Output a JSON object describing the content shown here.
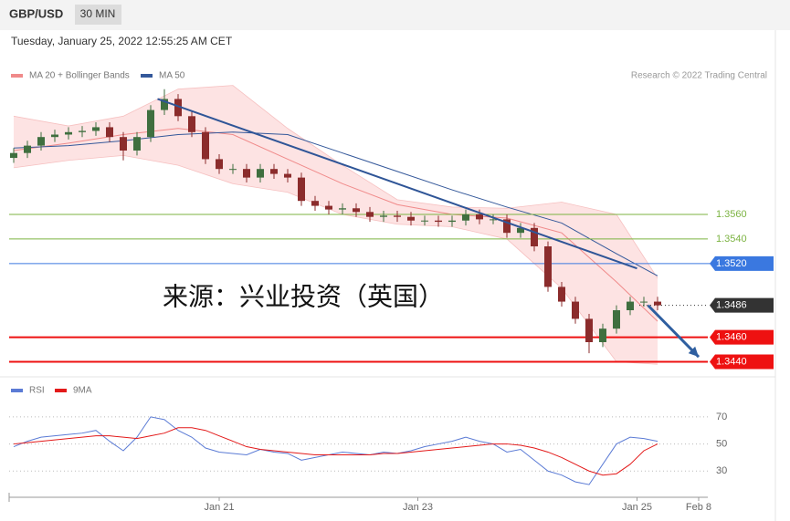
{
  "chart_data": {
    "type": "candlestick",
    "title": "GBP/USD",
    "timeframe": "30 MIN",
    "subtitle": "Tuesday, January 25, 2022 12:55:25 AM CET",
    "credit": "Research © 2022 Trading Central",
    "watermark": "来源：兴业投资（英国）",
    "xlim": [
      -1,
      51
    ],
    "xticks": [
      {
        "value": 15,
        "label": "Jan 21"
      },
      {
        "value": 29.5,
        "label": "Jan 23"
      },
      {
        "value": 45.5,
        "label": "Jan 25"
      },
      {
        "value": 50,
        "label": "Feb 8"
      }
    ],
    "ylim": [
      1.343,
      1.369
    ],
    "candles": {
      "up_color": "#3f6f3f",
      "down_color": "#8b2c2c",
      "open": [
        1.3606,
        1.361,
        1.3616,
        1.3623,
        1.3625,
        1.3627,
        1.3628,
        1.3631,
        1.3623,
        1.3612,
        1.3623,
        1.3645,
        1.3654,
        1.364,
        1.3627,
        1.3605,
        1.3597,
        1.3597,
        1.359,
        1.3597,
        1.3593,
        1.359,
        1.3571,
        1.3567,
        1.3564,
        1.3565,
        1.3562,
        1.3558,
        1.3559,
        1.3558,
        1.3555,
        1.3555,
        1.3554,
        1.3555,
        1.356,
        1.3556,
        1.3556,
        1.3545,
        1.3549,
        1.3534,
        1.3501,
        1.3489,
        1.3475,
        1.3456,
        1.3467,
        1.3482,
        1.3489,
        1.3489
      ],
      "high": [
        1.3614,
        1.362,
        1.3627,
        1.3629,
        1.3631,
        1.3632,
        1.3635,
        1.3635,
        1.3627,
        1.3627,
        1.3649,
        1.3662,
        1.3658,
        1.3644,
        1.3631,
        1.3609,
        1.3601,
        1.3601,
        1.3601,
        1.3601,
        1.3597,
        1.3594,
        1.3575,
        1.3571,
        1.3569,
        1.3569,
        1.3566,
        1.3563,
        1.3563,
        1.3562,
        1.3559,
        1.3559,
        1.3559,
        1.3564,
        1.3564,
        1.356,
        1.356,
        1.3553,
        1.3553,
        1.3538,
        1.3505,
        1.3493,
        1.3479,
        1.3471,
        1.3486,
        1.3493,
        1.3493,
        1.3493
      ],
      "low": [
        1.3602,
        1.3606,
        1.3612,
        1.3619,
        1.3621,
        1.3623,
        1.3624,
        1.3619,
        1.3604,
        1.3608,
        1.3619,
        1.3641,
        1.3636,
        1.3623,
        1.3601,
        1.3593,
        1.3593,
        1.3586,
        1.3586,
        1.3589,
        1.3586,
        1.3567,
        1.3563,
        1.356,
        1.356,
        1.3558,
        1.3554,
        1.3554,
        1.3554,
        1.3551,
        1.3551,
        1.355,
        1.355,
        1.3551,
        1.3552,
        1.3552,
        1.3541,
        1.3541,
        1.353,
        1.3497,
        1.3485,
        1.3471,
        1.3447,
        1.3452,
        1.3463,
        1.3478,
        1.3485,
        1.3482
      ],
      "close": [
        1.361,
        1.3616,
        1.3623,
        1.3625,
        1.3627,
        1.3628,
        1.3631,
        1.3623,
        1.3612,
        1.3623,
        1.3645,
        1.3654,
        1.364,
        1.3627,
        1.3605,
        1.3597,
        1.3597,
        1.359,
        1.3597,
        1.3593,
        1.359,
        1.3571,
        1.3567,
        1.3564,
        1.3565,
        1.3562,
        1.3558,
        1.3559,
        1.3558,
        1.3555,
        1.3555,
        1.3554,
        1.3555,
        1.356,
        1.3556,
        1.3556,
        1.3545,
        1.3549,
        1.3534,
        1.3501,
        1.3489,
        1.3475,
        1.3456,
        1.3467,
        1.3482,
        1.3489,
        1.3489,
        1.3486
      ]
    },
    "overlays": {
      "x": [
        0,
        4,
        8,
        12,
        16,
        20,
        24,
        28,
        32,
        36,
        40,
        44,
        47
      ],
      "bands": {
        "name": "MA 20 + Bollinger Bands",
        "color": "#f08a8a",
        "fill": "#fde3e3",
        "ma": [
          1.3612,
          1.3618,
          1.3625,
          1.363,
          1.3625,
          1.3605,
          1.3585,
          1.3568,
          1.356,
          1.3557,
          1.3545,
          1.3505,
          1.3473
        ],
        "upper": [
          1.364,
          1.3632,
          1.364,
          1.3662,
          1.3665,
          1.363,
          1.36,
          1.3572,
          1.3566,
          1.3565,
          1.357,
          1.356,
          1.3508
        ],
        "lower": [
          1.3598,
          1.3604,
          1.3608,
          1.36,
          1.3585,
          1.3578,
          1.356,
          1.3552,
          1.355,
          1.354,
          1.35,
          1.344,
          1.3438
        ]
      },
      "ma50": {
        "name": "MA 50",
        "color": "#34589a",
        "values": [
          1.3614,
          1.3616,
          1.362,
          1.3625,
          1.3627,
          1.3625,
          1.361,
          1.3595,
          1.358,
          1.3566,
          1.3553,
          1.3528,
          1.351
        ]
      }
    },
    "trendline": {
      "x": [
        10.5,
        45.5
      ],
      "values": [
        1.3654,
        1.3516
      ],
      "color": "#2f5597"
    },
    "arrow": {
      "x": [
        46.3,
        50
      ],
      "values": [
        1.3486,
        1.3444
      ],
      "color": "#2f5fa0"
    },
    "levels": [
      {
        "value": 1.356,
        "label": "1.3560",
        "color": "#7cb342",
        "box": false
      },
      {
        "value": 1.354,
        "label": "1.3540",
        "color": "#7cb342",
        "box": false
      },
      {
        "value": 1.352,
        "label": "1.3520",
        "color": "#3a78e0",
        "box": true
      },
      {
        "value": 1.3486,
        "label": "1.3486",
        "color": "#333333",
        "box": true
      },
      {
        "value": 1.346,
        "label": "1.3460",
        "color": "#ee1111",
        "box": true
      },
      {
        "value": 1.344,
        "label": "1.3440",
        "color": "#ee1111",
        "box": true
      }
    ],
    "rsi": {
      "ylim": [
        14,
        78
      ],
      "yticks": [
        30,
        50,
        70
      ],
      "series": [
        {
          "name": "RSI",
          "color": "#5b7bd5",
          "values": [
            48,
            52,
            55,
            56,
            57,
            58,
            60,
            52,
            45,
            55,
            70,
            68,
            60,
            55,
            47,
            44,
            43,
            42,
            46,
            44,
            43,
            38,
            40,
            42,
            44,
            43,
            42,
            44,
            43,
            45,
            48,
            50,
            52,
            55,
            52,
            50,
            44,
            46,
            38,
            30,
            27,
            22,
            20,
            35,
            50,
            55,
            54,
            52
          ]
        },
        {
          "name": "9MA",
          "color": "#e31a1a",
          "values": [
            50,
            51,
            52,
            53,
            54,
            55,
            56,
            56,
            55,
            54,
            56,
            58,
            62,
            62,
            60,
            56,
            52,
            48,
            46,
            45,
            44,
            43,
            42,
            42,
            42,
            42,
            42,
            43,
            43,
            44,
            45,
            46,
            47,
            48,
            49,
            50,
            50,
            49,
            47,
            44,
            40,
            35,
            30,
            27,
            28,
            35,
            45,
            50
          ]
        }
      ]
    }
  }
}
